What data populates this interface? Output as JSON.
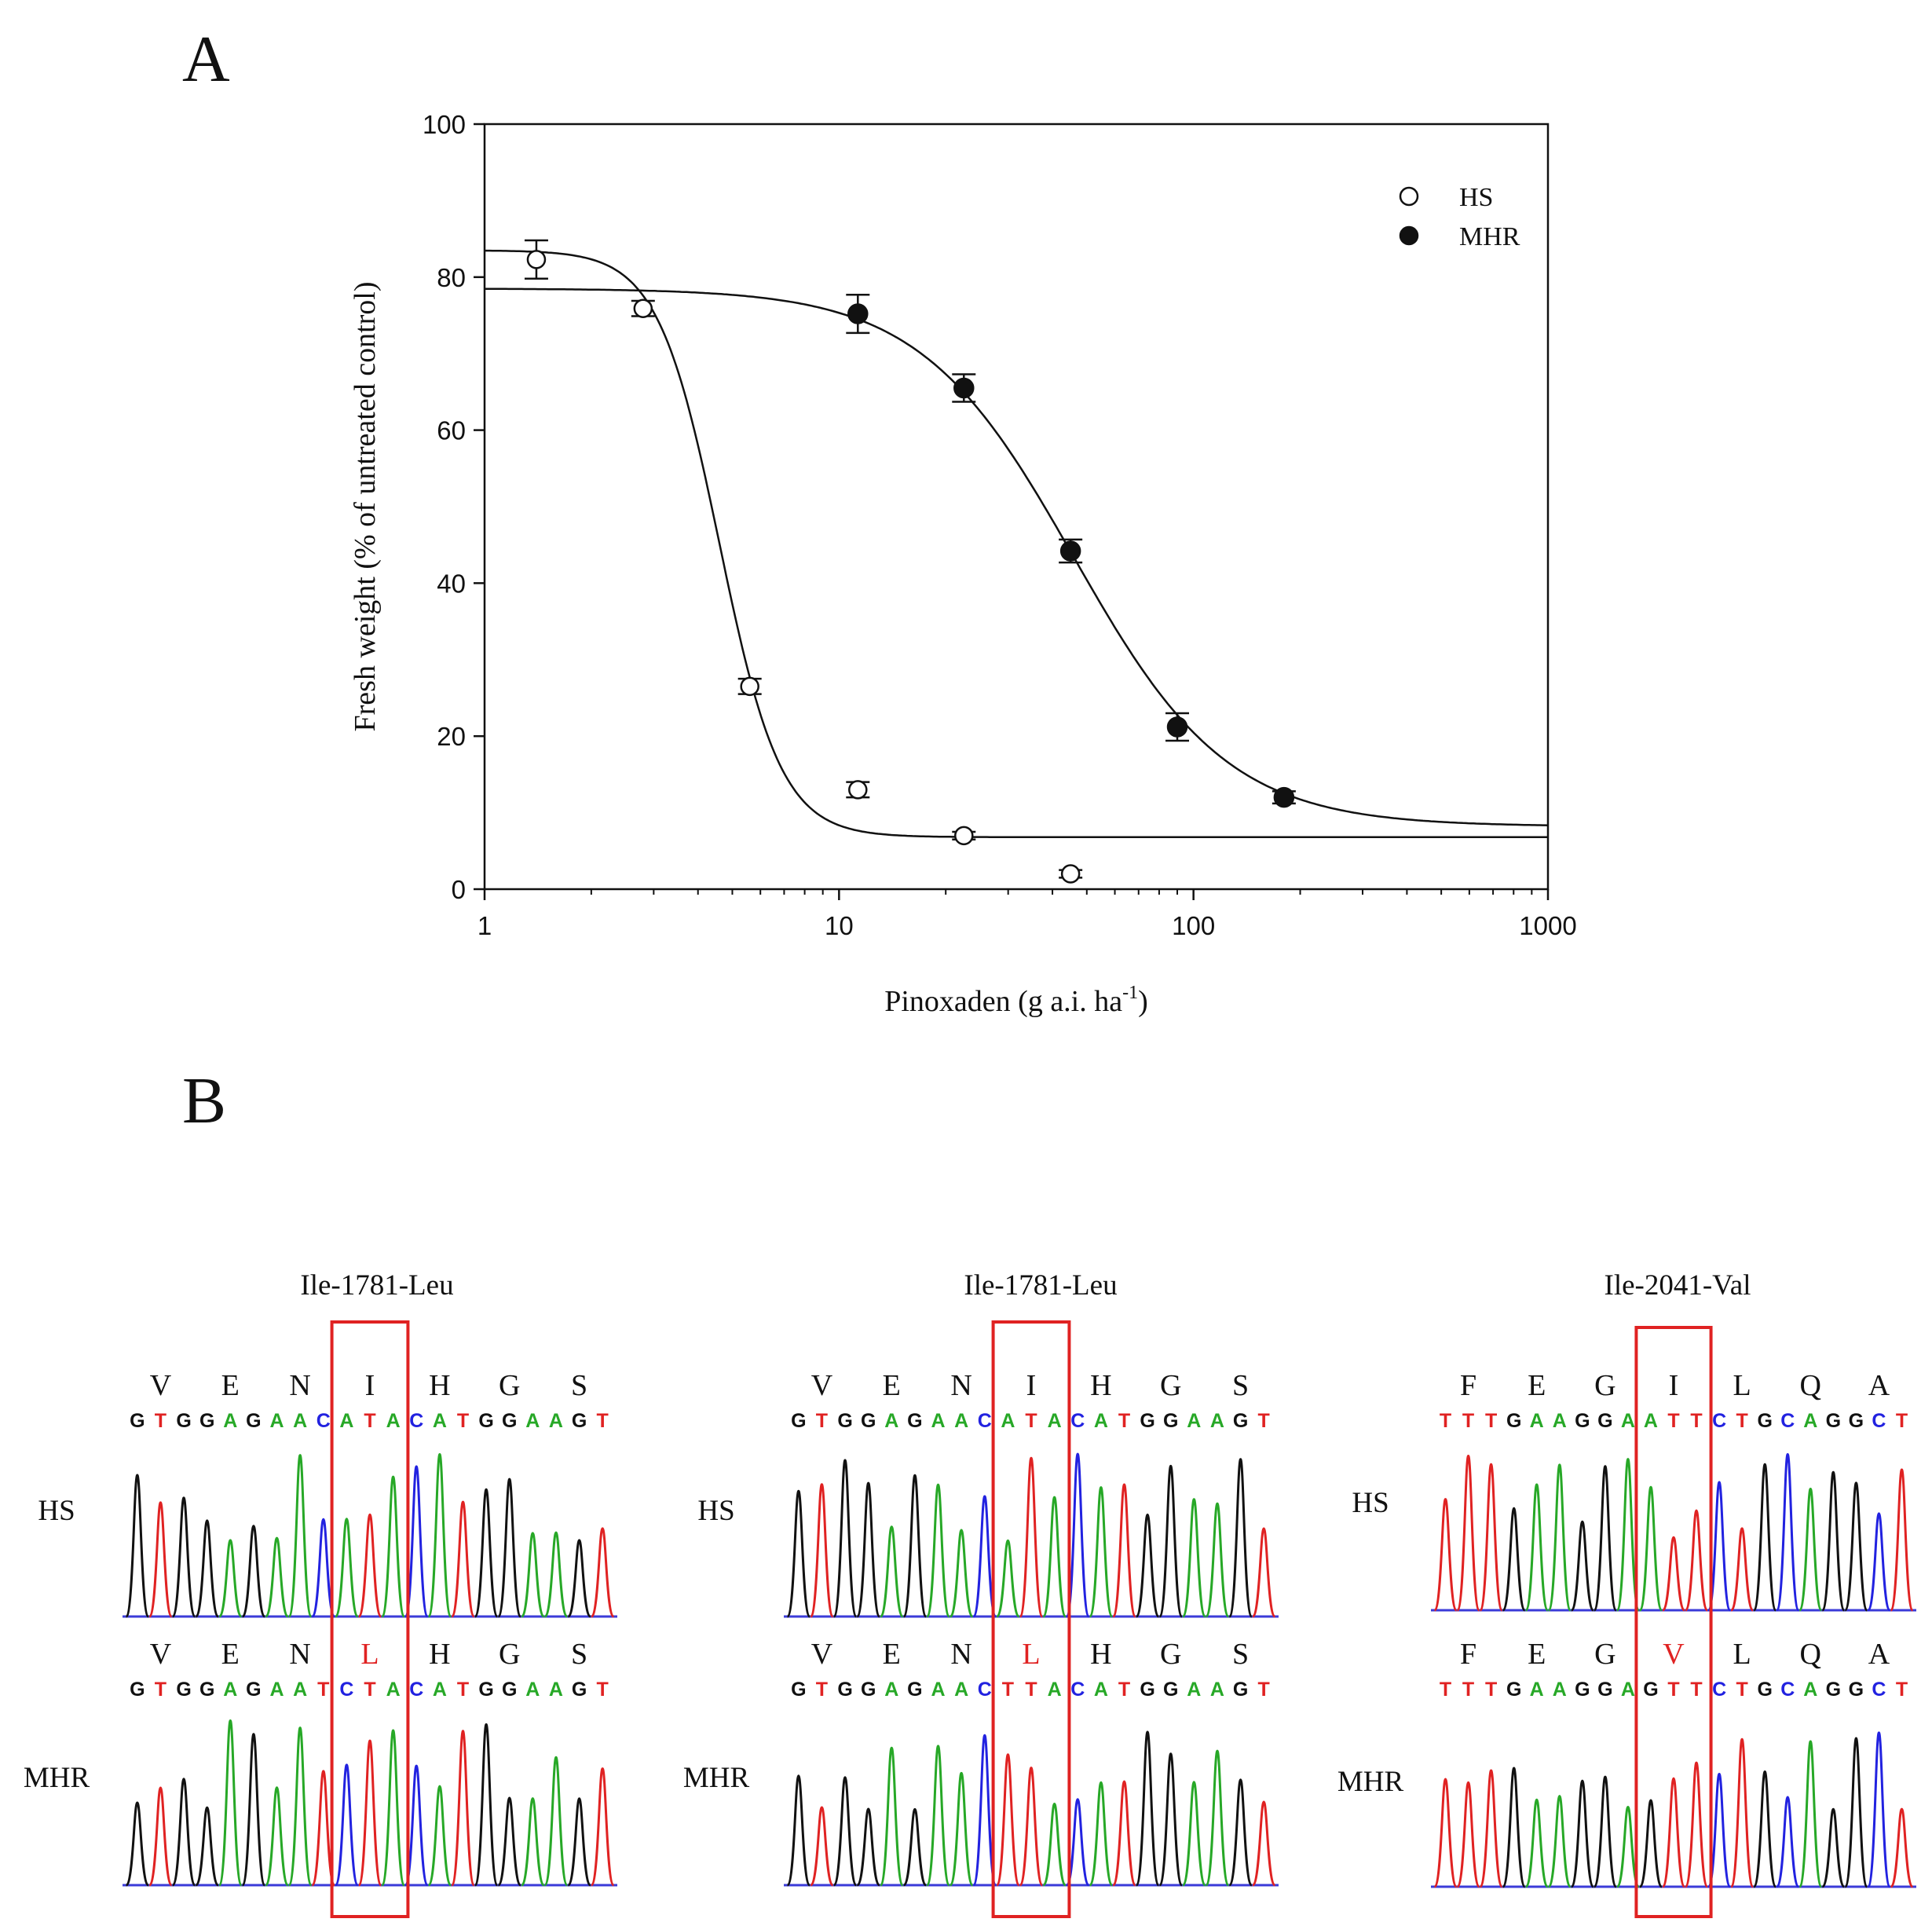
{
  "panel_a": {
    "label": "A"
  },
  "panel_b": {
    "label": "B"
  },
  "colors": {
    "A": "#27a827",
    "C": "#2222e0",
    "G": "#111111",
    "T": "#e02222",
    "box": "#e02222",
    "fit": "#111111"
  },
  "chart_data": {
    "type": "scatter",
    "title": "",
    "xlabel": "Pinoxaden (g a.i. ha",
    "xlabel_sup": "-1",
    "xlabel_end": ")",
    "ylabel": "Fresh weight (% of untreated control)",
    "xscale": "log",
    "xlim": [
      1,
      1000
    ],
    "ylim": [
      0,
      100
    ],
    "xticks": [
      1,
      10,
      100,
      1000
    ],
    "xtick_labels": [
      "1",
      "10",
      "100",
      "1000"
    ],
    "yticks": [
      0,
      20,
      40,
      60,
      80,
      100
    ],
    "ytick_labels": [
      "0",
      "20",
      "40",
      "60",
      "80",
      "100"
    ],
    "legend_position": "top-right",
    "series": [
      {
        "name": "HS",
        "marker": "open-circle",
        "x": [
          1.4,
          2.8,
          5.6,
          11.3,
          22.5,
          45
        ],
        "y": [
          82.3,
          75.9,
          26.5,
          13,
          7,
          2
        ],
        "err": [
          2.5,
          1,
          1,
          1,
          0.5,
          0.5
        ],
        "fit": {
          "top": 83.5,
          "bottom": 6.8,
          "ec50": 4.6,
          "slope": 5.0
        }
      },
      {
        "name": "MHR",
        "marker": "filled-circle",
        "x": [
          11.3,
          22.5,
          45,
          90,
          180
        ],
        "y": [
          75.2,
          65.5,
          44.2,
          21.2,
          12
        ],
        "err": [
          2.5,
          1.8,
          1.5,
          1.8,
          0.8
        ],
        "fit": {
          "top": 78.5,
          "bottom": 8.2,
          "ec50": 46,
          "slope": 2.0
        }
      }
    ]
  },
  "chromatograms": [
    {
      "title": "Ile-1781-Leu",
      "rows": [
        {
          "sample": "HS",
          "residues": [
            "V",
            "E",
            "N",
            "I",
            "H",
            "G",
            "S"
          ],
          "bases": "GTGGAGAACATACATGGAAGT"
        },
        {
          "sample": "MHR",
          "residues": [
            "V",
            "E",
            "N",
            "L",
            "H",
            "G",
            "S"
          ],
          "bases": "GTGGAGAATCTACATGGAAGT"
        }
      ]
    },
    {
      "title": "Ile-1781-Leu",
      "rows": [
        {
          "sample": "HS",
          "residues": [
            "V",
            "E",
            "N",
            "I",
            "H",
            "G",
            "S"
          ],
          "bases": "GTGGAGAACATACATGGAAGT"
        },
        {
          "sample": "MHR",
          "residues": [
            "V",
            "E",
            "N",
            "L",
            "H",
            "G",
            "S"
          ],
          "bases": "GTGGAGAACTTACATGGAAGT"
        }
      ]
    },
    {
      "title": "Ile-2041-Val",
      "rows": [
        {
          "sample": "HS",
          "residues": [
            "F",
            "E",
            "G",
            "I",
            "L",
            "Q",
            "A"
          ],
          "bases": "TTTGAAGGAATTCTGCAGGCT"
        },
        {
          "sample": "MHR",
          "residues": [
            "F",
            "E",
            "G",
            "V",
            "L",
            "Q",
            "A"
          ],
          "bases": "TTTGAAGGAGTTCTGCAGGCT"
        }
      ]
    }
  ],
  "mutant_residue_index": 3
}
